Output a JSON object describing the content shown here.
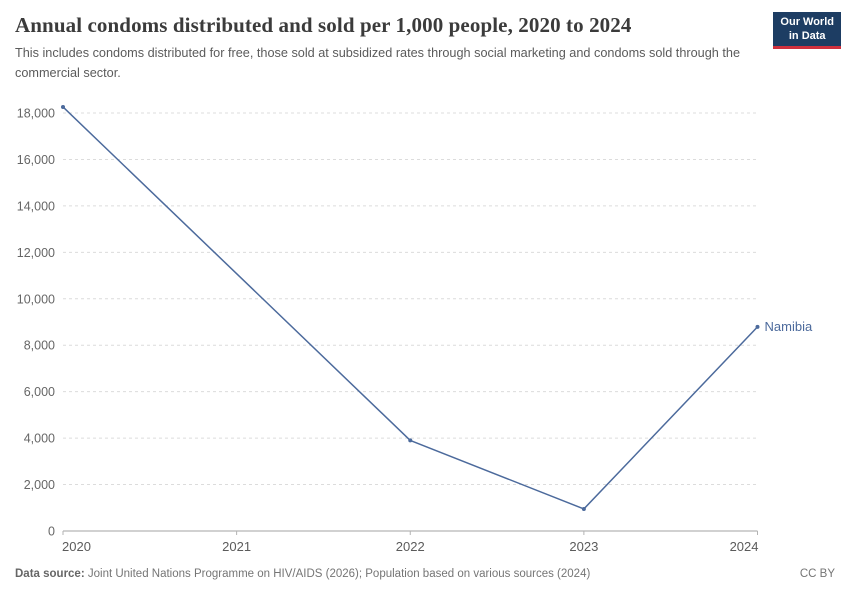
{
  "header": {
    "title": "Annual condoms distributed and sold per 1,000 people, 2020 to 2024",
    "subtitle": "This includes condoms distributed for free, those sold at subsidized rates through social marketing and condoms sold through the commercial sector."
  },
  "logo": {
    "line1": "Our World",
    "line2": "in Data",
    "background_color": "#1d3d63",
    "accent_color": "#cf303e"
  },
  "footer": {
    "source_label": "Data source:",
    "source_text": " Joint United Nations Programme on HIV/AIDS (2026); Population based on various sources (2024)",
    "license": "CC BY"
  },
  "chart_data": {
    "type": "line",
    "title": "Annual condoms distributed and sold per 1,000 people, 2020 to 2024",
    "xlabel": "",
    "ylabel": "",
    "grid": "dashed horizontal",
    "legend_position": "end-of-line label",
    "x": {
      "min": 2020,
      "max": 2024,
      "ticks": [
        2020,
        2021,
        2022,
        2023,
        2024
      ],
      "tick_labels": [
        "2020",
        "2021",
        "2022",
        "2023",
        "2024"
      ]
    },
    "y": {
      "min": 0,
      "max": 18000,
      "ticks": [
        0,
        2000,
        4000,
        6000,
        8000,
        10000,
        12000,
        14000,
        16000,
        18000
      ],
      "tick_labels": [
        "0",
        "2,000",
        "4,000",
        "6,000",
        "8,000",
        "10,000",
        "12,000",
        "14,000",
        "16,000",
        "18,000"
      ]
    },
    "series": [
      {
        "name": "Namibia",
        "color": "#4c6a9c",
        "points": [
          {
            "x": 2020,
            "y": 18260
          },
          {
            "x": 2022,
            "y": 3900
          },
          {
            "x": 2023,
            "y": 950
          },
          {
            "x": 2024,
            "y": 8790
          }
        ]
      }
    ]
  }
}
